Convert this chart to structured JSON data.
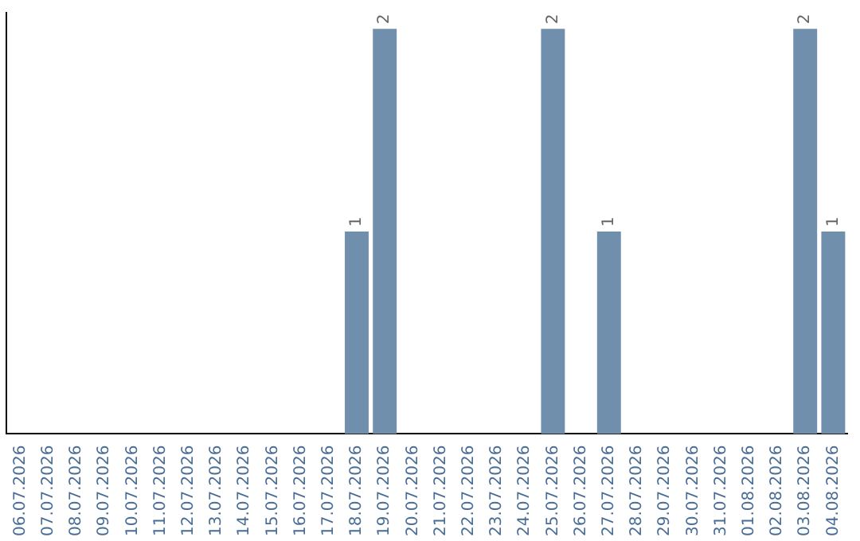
{
  "chart_data": {
    "type": "bar",
    "categories": [
      "06.07.2026",
      "07.07.2026",
      "08.07.2026",
      "09.07.2026",
      "10.07.2026",
      "11.07.2026",
      "12.07.2026",
      "13.07.2026",
      "14.07.2026",
      "15.07.2026",
      "16.07.2026",
      "17.07.2026",
      "18.07.2026",
      "19.07.2026",
      "20.07.2026",
      "21.07.2026",
      "22.07.2026",
      "23.07.2026",
      "24.07.2026",
      "25.07.2026",
      "26.07.2026",
      "27.07.2026",
      "28.07.2026",
      "29.07.2026",
      "30.07.2026",
      "31.07.2026",
      "01.08.2026",
      "02.08.2026",
      "03.08.2026",
      "04.08.2026"
    ],
    "values": [
      null,
      null,
      null,
      null,
      null,
      null,
      null,
      null,
      null,
      null,
      null,
      null,
      1,
      2,
      null,
      null,
      null,
      null,
      null,
      2,
      null,
      1,
      null,
      null,
      null,
      null,
      null,
      null,
      2,
      1
    ],
    "data_labels": true,
    "ylim": [
      0,
      2.08
    ],
    "color": "#6f8fad",
    "tick_labels": "x",
    "grid": false,
    "legend": false
  }
}
